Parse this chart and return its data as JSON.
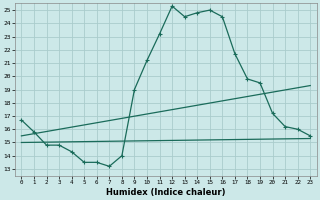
{
  "background_color": "#cce8e8",
  "grid_color": "#aacccc",
  "line_color": "#1a6b5a",
  "xlabel": "Humidex (Indice chaleur)",
  "xlim": [
    -0.5,
    23.5
  ],
  "ylim": [
    12.5,
    25.5
  ],
  "xticks": [
    0,
    1,
    2,
    3,
    4,
    5,
    6,
    7,
    8,
    9,
    10,
    11,
    12,
    13,
    14,
    15,
    16,
    17,
    18,
    19,
    20,
    21,
    22,
    23
  ],
  "yticks": [
    13,
    14,
    15,
    16,
    17,
    18,
    19,
    20,
    21,
    22,
    23,
    24,
    25
  ],
  "curve1_x": [
    0,
    1,
    2,
    3,
    4,
    5,
    6,
    7,
    8,
    9,
    10,
    11,
    12,
    13,
    14,
    15,
    16,
    17,
    18,
    19,
    20,
    21,
    22,
    23
  ],
  "curve1_y": [
    16.7,
    15.8,
    14.8,
    14.8,
    14.3,
    13.5,
    13.5,
    13.2,
    14.0,
    19.0,
    21.2,
    23.2,
    25.3,
    24.5,
    24.8,
    25.0,
    24.5,
    21.7,
    19.8,
    19.5,
    17.2,
    16.2,
    16.0,
    15.5
  ],
  "curve2_x": [
    0,
    23
  ],
  "curve2_y": [
    15.0,
    15.3
  ],
  "curve3_x": [
    0,
    23
  ],
  "curve3_y": [
    15.5,
    19.3
  ],
  "marker": "+"
}
